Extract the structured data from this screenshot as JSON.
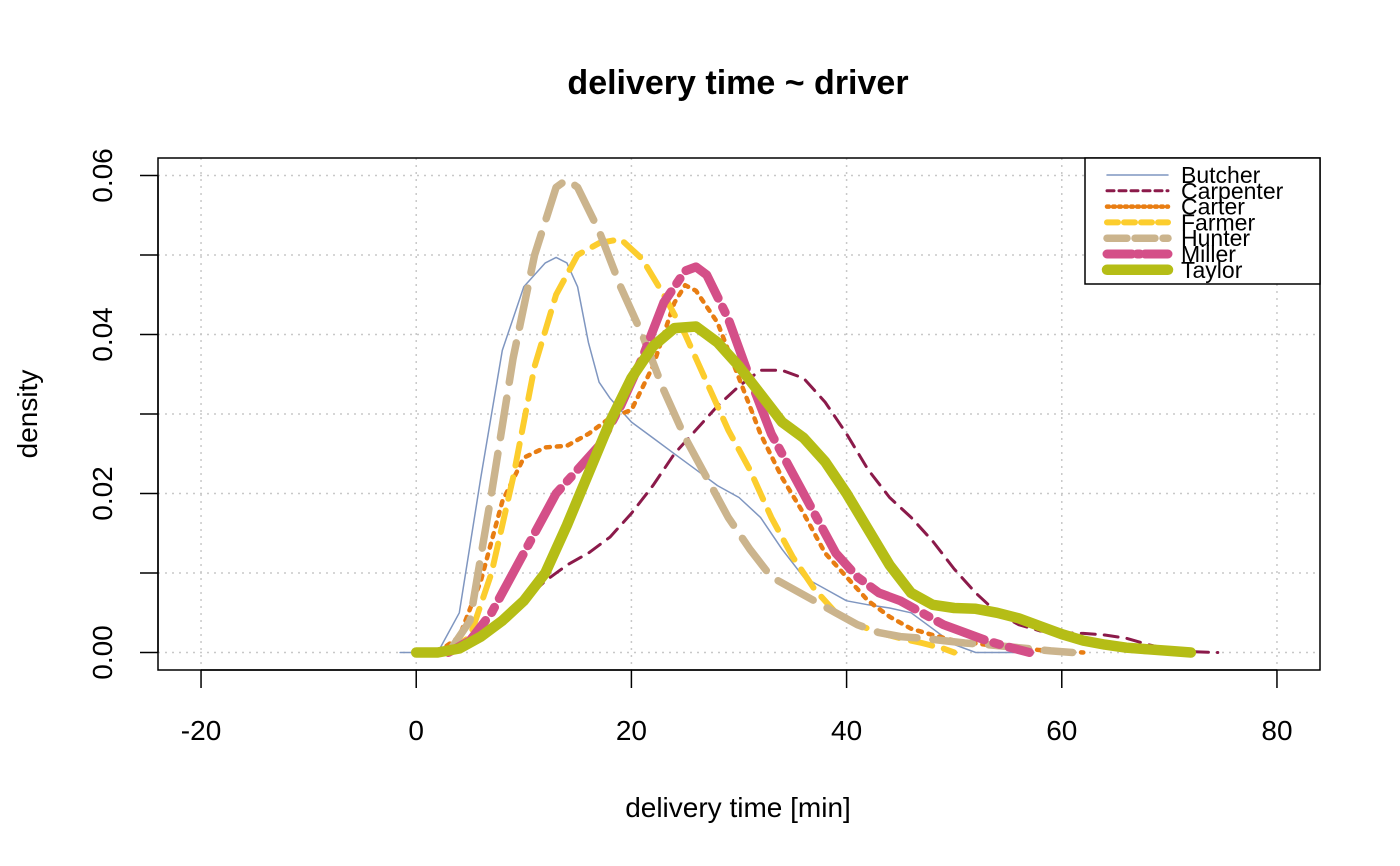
{
  "chart_data": {
    "type": "line",
    "title": "delivery time ~ driver",
    "xlabel": "delivery time [min]",
    "ylabel": "density",
    "xlim": [
      -24,
      84
    ],
    "ylim": [
      -0.0022,
      0.0622
    ],
    "xticks": [
      -20,
      0,
      20,
      40,
      60,
      80
    ],
    "xtick_labels": [
      "-20",
      "0",
      "20",
      "40",
      "60",
      "80"
    ],
    "yticks": [
      0.0,
      0.01,
      0.02,
      0.03,
      0.04,
      0.05,
      0.06
    ],
    "ytick_labels": [
      "0.00",
      "",
      "0.02",
      "",
      "0.04",
      "",
      "0.06"
    ],
    "grid": true,
    "legend_position": "top-right",
    "series": [
      {
        "name": "Butcher",
        "color": "#7f96c0",
        "dash": "solid",
        "width": 1.5,
        "points": [
          [
            -1.5,
            0
          ],
          [
            2,
            0
          ],
          [
            4,
            0.005
          ],
          [
            6,
            0.022
          ],
          [
            8,
            0.038
          ],
          [
            10,
            0.046
          ],
          [
            12,
            0.049
          ],
          [
            13,
            0.0497
          ],
          [
            14,
            0.049
          ],
          [
            15,
            0.046
          ],
          [
            16,
            0.039
          ],
          [
            17,
            0.034
          ],
          [
            18,
            0.032
          ],
          [
            20,
            0.029
          ],
          [
            22,
            0.027
          ],
          [
            24,
            0.025
          ],
          [
            26,
            0.023
          ],
          [
            28,
            0.021
          ],
          [
            30,
            0.0195
          ],
          [
            32,
            0.017
          ],
          [
            34,
            0.013
          ],
          [
            36,
            0.0095
          ],
          [
            38,
            0.008
          ],
          [
            40,
            0.0065
          ],
          [
            42,
            0.006
          ],
          [
            44,
            0.0056
          ],
          [
            46,
            0.005
          ],
          [
            48,
            0.003
          ],
          [
            50,
            0.001
          ],
          [
            52,
            0
          ],
          [
            56,
            0
          ]
        ]
      },
      {
        "name": "Carpenter",
        "color": "#8b1a4a",
        "dash": "14 9",
        "width": 3,
        "points": [
          [
            2,
            0
          ],
          [
            4,
            0.0005
          ],
          [
            6,
            0.002
          ],
          [
            8,
            0.004
          ],
          [
            10,
            0.0065
          ],
          [
            12,
            0.009
          ],
          [
            14,
            0.011
          ],
          [
            16,
            0.0125
          ],
          [
            18,
            0.0145
          ],
          [
            20,
            0.0175
          ],
          [
            22,
            0.021
          ],
          [
            24,
            0.025
          ],
          [
            26,
            0.028
          ],
          [
            28,
            0.031
          ],
          [
            30,
            0.0335
          ],
          [
            32,
            0.0355
          ],
          [
            34,
            0.0355
          ],
          [
            36,
            0.0345
          ],
          [
            38,
            0.0315
          ],
          [
            40,
            0.0275
          ],
          [
            42,
            0.023
          ],
          [
            44,
            0.0195
          ],
          [
            46,
            0.017
          ],
          [
            48,
            0.014
          ],
          [
            50,
            0.0105
          ],
          [
            52,
            0.0075
          ],
          [
            54,
            0.005
          ],
          [
            56,
            0.0035
          ],
          [
            58,
            0.0027
          ],
          [
            60,
            0.0025
          ],
          [
            62,
            0.0024
          ],
          [
            64,
            0.0022
          ],
          [
            66,
            0.0018
          ],
          [
            68,
            0.001
          ],
          [
            70,
            0.0004
          ],
          [
            72,
            0.0001
          ],
          [
            74.5,
            0
          ]
        ]
      },
      {
        "name": "Carter",
        "color": "#e87d12",
        "dash": "4 7",
        "width": 4.5,
        "points": [
          [
            2,
            0
          ],
          [
            4,
            0.002
          ],
          [
            6,
            0.009
          ],
          [
            8,
            0.019
          ],
          [
            10,
            0.0245
          ],
          [
            12,
            0.0258
          ],
          [
            14,
            0.026
          ],
          [
            16,
            0.0275
          ],
          [
            18,
            0.0295
          ],
          [
            20,
            0.0305
          ],
          [
            22,
            0.036
          ],
          [
            24,
            0.044
          ],
          [
            25,
            0.0462
          ],
          [
            26,
            0.0455
          ],
          [
            28,
            0.0415
          ],
          [
            30,
            0.0345
          ],
          [
            32,
            0.0275
          ],
          [
            34,
            0.022
          ],
          [
            36,
            0.0175
          ],
          [
            38,
            0.0125
          ],
          [
            40,
            0.0095
          ],
          [
            42,
            0.0065
          ],
          [
            44,
            0.0045
          ],
          [
            46,
            0.003
          ],
          [
            48,
            0.0022
          ],
          [
            50,
            0.0015
          ],
          [
            54,
            0.0008
          ],
          [
            58,
            0.0003
          ],
          [
            62,
            0
          ]
        ]
      },
      {
        "name": "Farmer",
        "color": "#fccd2d",
        "dash": "22 12",
        "width": 6,
        "points": [
          [
            3,
            0
          ],
          [
            5,
            0.002
          ],
          [
            7,
            0.01
          ],
          [
            9,
            0.022
          ],
          [
            11,
            0.036
          ],
          [
            13,
            0.045
          ],
          [
            15,
            0.05
          ],
          [
            17,
            0.0515
          ],
          [
            19,
            0.052
          ],
          [
            21,
            0.0495
          ],
          [
            23,
            0.045
          ],
          [
            25,
            0.04
          ],
          [
            27,
            0.034
          ],
          [
            29,
            0.028
          ],
          [
            31,
            0.023
          ],
          [
            33,
            0.017
          ],
          [
            35,
            0.012
          ],
          [
            37,
            0.008
          ],
          [
            39,
            0.005
          ],
          [
            41,
            0.0035
          ],
          [
            43,
            0.0025
          ],
          [
            45,
            0.0018
          ],
          [
            47,
            0.0012
          ],
          [
            49,
            0.0005
          ],
          [
            50,
            0
          ]
        ]
      },
      {
        "name": "Hunter",
        "color": "#cbb48d",
        "dash": "40 16",
        "width": 7.5,
        "points": [
          [
            3,
            0
          ],
          [
            5,
            0.004
          ],
          [
            7,
            0.02
          ],
          [
            9,
            0.037
          ],
          [
            11,
            0.05
          ],
          [
            13,
            0.0585
          ],
          [
            14,
            0.0595
          ],
          [
            15,
            0.0585
          ],
          [
            17,
            0.053
          ],
          [
            19,
            0.046
          ],
          [
            21,
            0.04
          ],
          [
            23,
            0.033
          ],
          [
            25,
            0.027
          ],
          [
            27,
            0.022
          ],
          [
            29,
            0.017
          ],
          [
            31,
            0.013
          ],
          [
            33,
            0.0095
          ],
          [
            35,
            0.008
          ],
          [
            37,
            0.0065
          ],
          [
            39,
            0.005
          ],
          [
            41,
            0.0035
          ],
          [
            43,
            0.0025
          ],
          [
            45,
            0.002
          ],
          [
            47,
            0.0018
          ],
          [
            49,
            0.0015
          ],
          [
            51,
            0.0012
          ],
          [
            53,
            0.001
          ],
          [
            56,
            0.0006
          ],
          [
            59,
            0.0002
          ],
          [
            61,
            0
          ]
        ]
      },
      {
        "name": "Miller",
        "color": "#d44f88",
        "dash": "50 10 6 10",
        "width": 9,
        "points": [
          [
            3,
            0
          ],
          [
            5,
            0.0015
          ],
          [
            7,
            0.005
          ],
          [
            9,
            0.01
          ],
          [
            11,
            0.015
          ],
          [
            13,
            0.02
          ],
          [
            15,
            0.023
          ],
          [
            17,
            0.026
          ],
          [
            19,
            0.031
          ],
          [
            21,
            0.037
          ],
          [
            23,
            0.044
          ],
          [
            25,
            0.048
          ],
          [
            26,
            0.0485
          ],
          [
            27,
            0.0475
          ],
          [
            29,
            0.042
          ],
          [
            31,
            0.0345
          ],
          [
            33,
            0.0275
          ],
          [
            35,
            0.0225
          ],
          [
            37,
            0.0175
          ],
          [
            39,
            0.0125
          ],
          [
            41,
            0.0095
          ],
          [
            43,
            0.0075
          ],
          [
            45,
            0.0065
          ],
          [
            47,
            0.005
          ],
          [
            49,
            0.0035
          ],
          [
            51,
            0.0025
          ],
          [
            53,
            0.0015
          ],
          [
            55,
            0.0007
          ],
          [
            57,
            0
          ]
        ]
      },
      {
        "name": "Taylor",
        "color": "#b5bd16",
        "dash": "solid",
        "width": 10.5,
        "points": [
          [
            0,
            0
          ],
          [
            2,
            0
          ],
          [
            4,
            0.0005
          ],
          [
            6,
            0.002
          ],
          [
            8,
            0.004
          ],
          [
            10,
            0.0065
          ],
          [
            12,
            0.01
          ],
          [
            14,
            0.016
          ],
          [
            16,
            0.0225
          ],
          [
            18,
            0.029
          ],
          [
            20,
            0.0345
          ],
          [
            22,
            0.0385
          ],
          [
            24,
            0.0408
          ],
          [
            26,
            0.041
          ],
          [
            28,
            0.039
          ],
          [
            30,
            0.036
          ],
          [
            32,
            0.0325
          ],
          [
            34,
            0.029
          ],
          [
            36,
            0.027
          ],
          [
            38,
            0.024
          ],
          [
            40,
            0.02
          ],
          [
            42,
            0.0155
          ],
          [
            44,
            0.011
          ],
          [
            46,
            0.0075
          ],
          [
            48,
            0.006
          ],
          [
            50,
            0.0056
          ],
          [
            52,
            0.0055
          ],
          [
            54,
            0.005
          ],
          [
            56,
            0.0043
          ],
          [
            58,
            0.0033
          ],
          [
            60,
            0.0023
          ],
          [
            62,
            0.0015
          ],
          [
            64,
            0.001
          ],
          [
            66,
            0.0006
          ],
          [
            68,
            0.0004
          ],
          [
            70,
            0.0002
          ],
          [
            72,
            0
          ]
        ]
      }
    ]
  }
}
